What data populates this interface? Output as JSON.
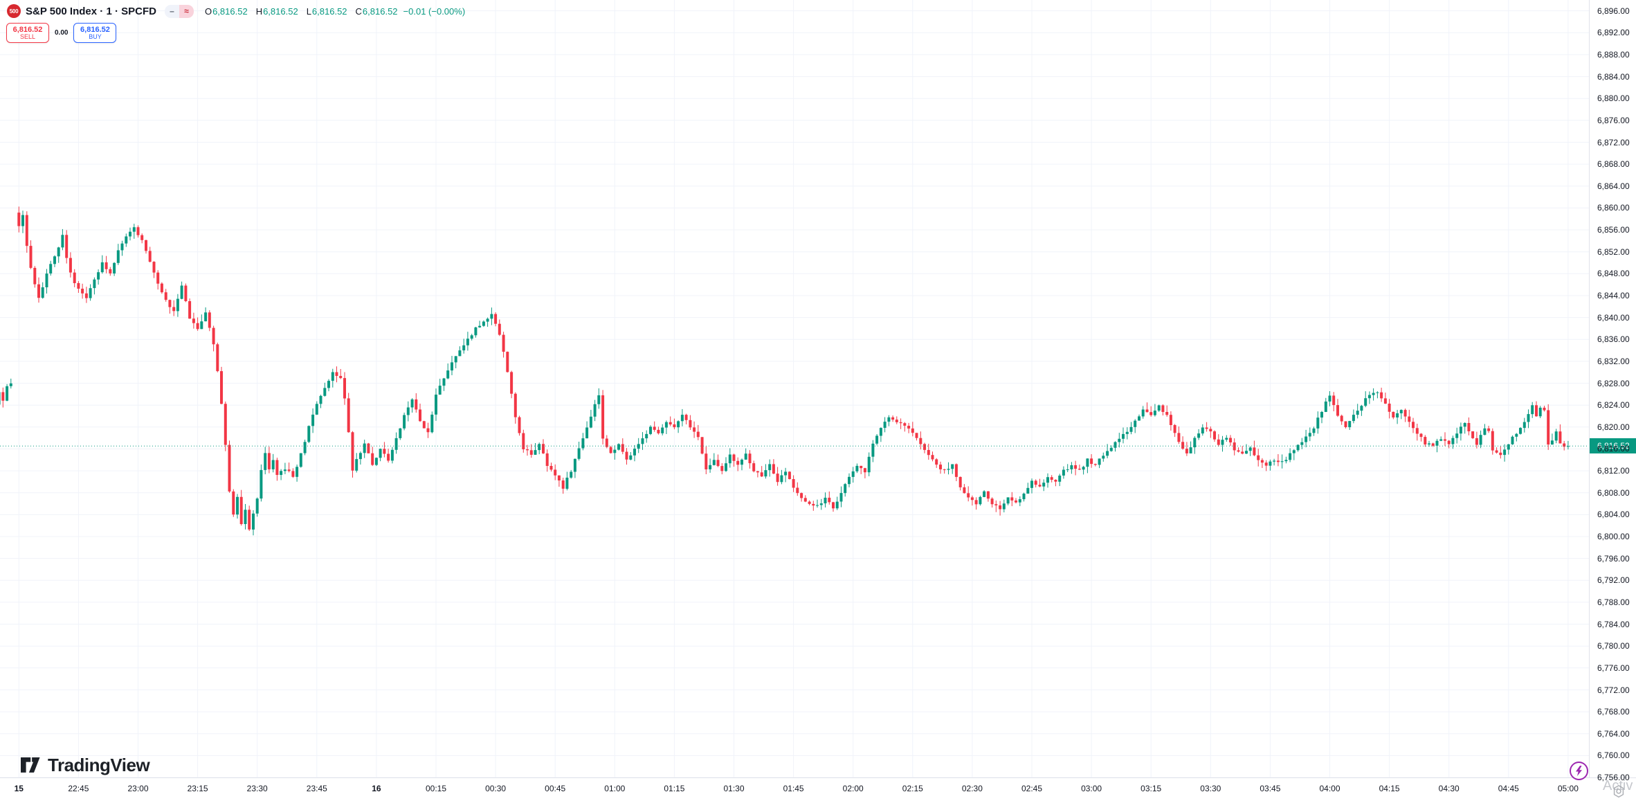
{
  "symbol_info": {
    "logo_text": "500",
    "logo_bg": "#D7282F",
    "title": "S&P 500 Index · 1 · SPCFD",
    "market_status_icon": "–",
    "delay_icon": "≈",
    "ohlc": {
      "open_label": "O",
      "open": "6,816.52",
      "high_label": "H",
      "high": "6,816.52",
      "low_label": "L",
      "low": "6,816.52",
      "close_label": "C",
      "close": "6,816.52",
      "change": "−0.01 (−0.00%)"
    },
    "value_color": "#089981"
  },
  "trade_widget": {
    "sell_price": "6,816.52",
    "sell_label": "SELL",
    "spread": "0.00",
    "buy_price": "6,816.52",
    "buy_label": "BUY",
    "sell_color": "#F23645",
    "buy_color": "#2962FF"
  },
  "chart_data": {
    "type": "candlestick",
    "title": "S&P 500 Index, 1 minute, SPCFD",
    "interval_minutes": 1,
    "colors": {
      "up": "#089981",
      "down": "#F23645",
      "grid": "#F0F3FA",
      "price_line": "#089981"
    },
    "y_axis": {
      "max_label": 6896,
      "min_label": 6756,
      "step": 4,
      "tick_format": "#,##0.00"
    },
    "x_axis": {
      "minutes_per_label": 15,
      "labels": [
        {
          "text": "15",
          "emphasis": true
        },
        {
          "text": "22:45"
        },
        {
          "text": "23:00"
        },
        {
          "text": "23:15"
        },
        {
          "text": "23:30"
        },
        {
          "text": "23:45"
        },
        {
          "text": "16",
          "emphasis": true
        },
        {
          "text": "00:15"
        },
        {
          "text": "00:30"
        },
        {
          "text": "00:45"
        },
        {
          "text": "01:00"
        },
        {
          "text": "01:15"
        },
        {
          "text": "01:30"
        },
        {
          "text": "01:45"
        },
        {
          "text": "02:00"
        },
        {
          "text": "02:15"
        },
        {
          "text": "02:30"
        },
        {
          "text": "02:45"
        },
        {
          "text": "03:00"
        },
        {
          "text": "03:15"
        },
        {
          "text": "03:30"
        },
        {
          "text": "03:45"
        },
        {
          "text": "04:00"
        },
        {
          "text": "04:15"
        },
        {
          "text": "04:30"
        },
        {
          "text": "04:45"
        },
        {
          "text": "05:00"
        }
      ]
    },
    "current_price": {
      "text": "6,816.52",
      "numeric": 6816.52,
      "label_bg": "#089981"
    },
    "last_bar": {
      "open": 6816.52,
      "high": 6816.52,
      "low": 6816.52,
      "close": 6816.52,
      "change": -0.01,
      "change_pct": "-0.00%"
    },
    "session_gap_minutes": [
      -1
    ],
    "t_start": -5,
    "t_end": 390,
    "wick_seed": 7,
    "wick_max": 1.3,
    "jitter": 0.55,
    "price_path": [
      [
        -5,
        6824
      ],
      [
        -4,
        6826.5
      ],
      [
        -3,
        6825
      ],
      [
        -2,
        6827.5
      ],
      [
        -1,
        6828
      ],
      [
        0,
        6859
      ],
      [
        1,
        6856.5
      ],
      [
        2,
        6858.5
      ],
      [
        3,
        6853
      ],
      [
        4,
        6849
      ],
      [
        5,
        6846
      ],
      [
        6,
        6843.5
      ],
      [
        7,
        6845.5
      ],
      [
        8,
        6848
      ],
      [
        10,
        6851
      ],
      [
        12,
        6855
      ],
      [
        13,
        6851
      ],
      [
        14,
        6848
      ],
      [
        16,
        6845
      ],
      [
        18,
        6843.5
      ],
      [
        20,
        6847
      ],
      [
        22,
        6850
      ],
      [
        24,
        6848
      ],
      [
        26,
        6852
      ],
      [
        28,
        6855
      ],
      [
        30,
        6856.5
      ],
      [
        32,
        6854
      ],
      [
        34,
        6850
      ],
      [
        36,
        6846
      ],
      [
        38,
        6843
      ],
      [
        40,
        6841
      ],
      [
        42,
        6846
      ],
      [
        44,
        6840
      ],
      [
        46,
        6838
      ],
      [
        48,
        6841
      ],
      [
        50,
        6835
      ],
      [
        51,
        6830
      ],
      [
        52,
        6824
      ],
      [
        53,
        6817
      ],
      [
        54,
        6808
      ],
      [
        55,
        6804
      ],
      [
        56,
        6807
      ],
      [
        57,
        6802
      ],
      [
        58,
        6805
      ],
      [
        59,
        6801.5
      ],
      [
        60,
        6804
      ],
      [
        61,
        6807
      ],
      [
        62,
        6812
      ],
      [
        63,
        6815
      ],
      [
        64,
        6812
      ],
      [
        65,
        6814
      ],
      [
        66,
        6811
      ],
      [
        68,
        6812.5
      ],
      [
        70,
        6811
      ],
      [
        72,
        6815
      ],
      [
        74,
        6820
      ],
      [
        76,
        6824
      ],
      [
        78,
        6827
      ],
      [
        80,
        6830
      ],
      [
        82,
        6829
      ],
      [
        83,
        6825
      ],
      [
        84,
        6819
      ],
      [
        85,
        6812
      ],
      [
        86,
        6814
      ],
      [
        88,
        6817
      ],
      [
        90,
        6813
      ],
      [
        92,
        6816
      ],
      [
        94,
        6814
      ],
      [
        96,
        6818
      ],
      [
        98,
        6822
      ],
      [
        100,
        6825
      ],
      [
        102,
        6821
      ],
      [
        104,
        6819
      ],
      [
        106,
        6826
      ],
      [
        108,
        6829
      ],
      [
        110,
        6832
      ],
      [
        112,
        6834
      ],
      [
        114,
        6836
      ],
      [
        116,
        6838
      ],
      [
        118,
        6839
      ],
      [
        120,
        6840.5
      ],
      [
        122,
        6837
      ],
      [
        124,
        6830
      ],
      [
        126,
        6822
      ],
      [
        128,
        6816
      ],
      [
        130,
        6815
      ],
      [
        132,
        6817
      ],
      [
        134,
        6813
      ],
      [
        136,
        6811
      ],
      [
        138,
        6809
      ],
      [
        140,
        6812
      ],
      [
        142,
        6816
      ],
      [
        144,
        6820
      ],
      [
        146,
        6824
      ],
      [
        147,
        6826
      ],
      [
        148,
        6818
      ],
      [
        150,
        6815
      ],
      [
        152,
        6817
      ],
      [
        154,
        6814
      ],
      [
        156,
        6816
      ],
      [
        158,
        6818
      ],
      [
        160,
        6820
      ],
      [
        162,
        6819
      ],
      [
        164,
        6821
      ],
      [
        166,
        6820
      ],
      [
        168,
        6822
      ],
      [
        170,
        6820
      ],
      [
        172,
        6818
      ],
      [
        174,
        6812
      ],
      [
        176,
        6814
      ],
      [
        178,
        6812
      ],
      [
        180,
        6815
      ],
      [
        182,
        6813
      ],
      [
        184,
        6815
      ],
      [
        186,
        6812
      ],
      [
        188,
        6811
      ],
      [
        190,
        6813
      ],
      [
        192,
        6810
      ],
      [
        194,
        6812
      ],
      [
        196,
        6809
      ],
      [
        198,
        6807
      ],
      [
        200,
        6806
      ],
      [
        202,
        6805.5
      ],
      [
        204,
        6807
      ],
      [
        206,
        6805
      ],
      [
        208,
        6808
      ],
      [
        210,
        6811
      ],
      [
        212,
        6813
      ],
      [
        214,
        6812
      ],
      [
        216,
        6817
      ],
      [
        218,
        6820
      ],
      [
        220,
        6822
      ],
      [
        222,
        6821
      ],
      [
        224,
        6820
      ],
      [
        226,
        6819
      ],
      [
        228,
        6817
      ],
      [
        230,
        6815
      ],
      [
        232,
        6813
      ],
      [
        234,
        6812
      ],
      [
        236,
        6813
      ],
      [
        238,
        6809
      ],
      [
        240,
        6807
      ],
      [
        242,
        6806
      ],
      [
        244,
        6808
      ],
      [
        246,
        6806
      ],
      [
        248,
        6805
      ],
      [
        250,
        6807
      ],
      [
        252,
        6806
      ],
      [
        254,
        6808
      ],
      [
        256,
        6810
      ],
      [
        258,
        6809
      ],
      [
        260,
        6811
      ],
      [
        262,
        6810
      ],
      [
        264,
        6812
      ],
      [
        266,
        6813
      ],
      [
        268,
        6812
      ],
      [
        270,
        6814
      ],
      [
        272,
        6813
      ],
      [
        274,
        6815
      ],
      [
        276,
        6816
      ],
      [
        278,
        6818
      ],
      [
        280,
        6819
      ],
      [
        282,
        6821
      ],
      [
        284,
        6823
      ],
      [
        286,
        6822
      ],
      [
        288,
        6824
      ],
      [
        290,
        6822
      ],
      [
        292,
        6819
      ],
      [
        294,
        6816
      ],
      [
        295,
        6815
      ],
      [
        297,
        6818
      ],
      [
        299,
        6820
      ],
      [
        301,
        6819
      ],
      [
        303,
        6817
      ],
      [
        305,
        6818
      ],
      [
        307,
        6816
      ],
      [
        309,
        6815
      ],
      [
        311,
        6816
      ],
      [
        313,
        6814
      ],
      [
        315,
        6813
      ],
      [
        317,
        6814
      ],
      [
        319,
        6813.5
      ],
      [
        321,
        6815
      ],
      [
        323,
        6817
      ],
      [
        325,
        6818
      ],
      [
        327,
        6820
      ],
      [
        329,
        6823
      ],
      [
        331,
        6826
      ],
      [
        333,
        6822
      ],
      [
        335,
        6820
      ],
      [
        337,
        6822
      ],
      [
        339,
        6824
      ],
      [
        341,
        6826
      ],
      [
        343,
        6826.5
      ],
      [
        345,
        6824
      ],
      [
        347,
        6822
      ],
      [
        349,
        6823
      ],
      [
        351,
        6821
      ],
      [
        353,
        6819
      ],
      [
        355,
        6817
      ],
      [
        357,
        6816.5
      ],
      [
        359,
        6818
      ],
      [
        361,
        6817
      ],
      [
        363,
        6819
      ],
      [
        365,
        6821
      ],
      [
        366,
        6819
      ],
      [
        368,
        6817
      ],
      [
        370,
        6820
      ],
      [
        371,
        6819
      ],
      [
        372,
        6816
      ],
      [
        374,
        6815
      ],
      [
        376,
        6817
      ],
      [
        378,
        6819
      ],
      [
        380,
        6821
      ],
      [
        382,
        6824
      ],
      [
        383,
        6822
      ],
      [
        384,
        6823.5
      ],
      [
        385,
        6823
      ],
      [
        386,
        6817
      ],
      [
        387,
        6817.5
      ],
      [
        388,
        6819
      ],
      [
        389,
        6817
      ],
      [
        390,
        6816.52
      ]
    ]
  },
  "tv_logo": {
    "text": "TradingView"
  },
  "watermark": {
    "text": "Activ"
  }
}
